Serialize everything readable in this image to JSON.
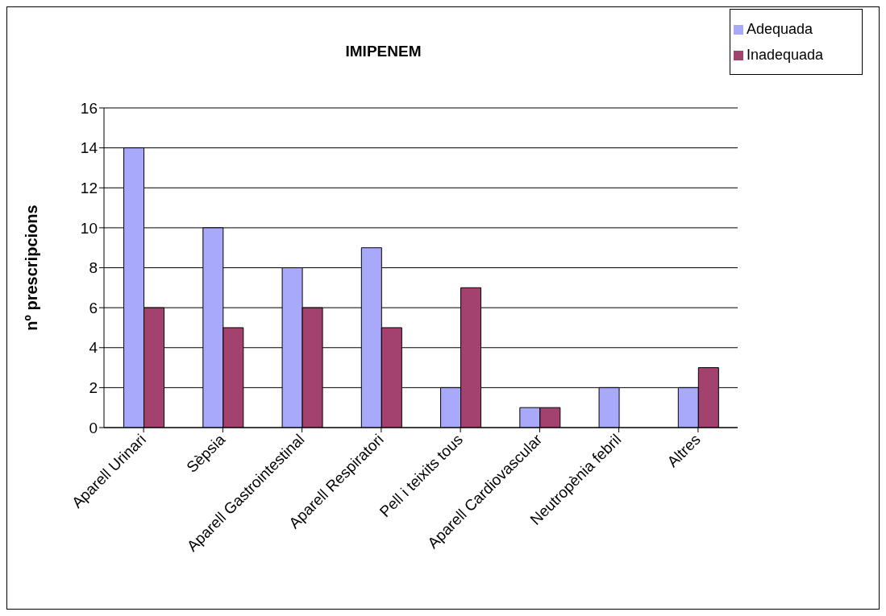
{
  "chart_data": {
    "type": "bar",
    "title": "IMIPENEM",
    "ylabel": "nº prescripcions",
    "categories": [
      "Aparell Urinari",
      "Sèpsia",
      "Aparell Gastrointestinal",
      "Aparell Respiratori",
      "Pell i teixits tous",
      "Aparell Cardiovascular",
      "Neutropènia febril",
      "Altres"
    ],
    "series": [
      {
        "name": "Adequada",
        "color": "#a9a9fb",
        "values": [
          14,
          10,
          8,
          9,
          2,
          1,
          2,
          2
        ]
      },
      {
        "name": "Inadequada",
        "color": "#a4426f",
        "values": [
          6,
          5,
          6,
          5,
          7,
          1,
          0,
          3
        ]
      }
    ],
    "ylim": [
      0,
      16
    ],
    "yticks": [
      0,
      2,
      4,
      6,
      8,
      10,
      12,
      14,
      16
    ],
    "grid": "y",
    "legend": "top right"
  }
}
